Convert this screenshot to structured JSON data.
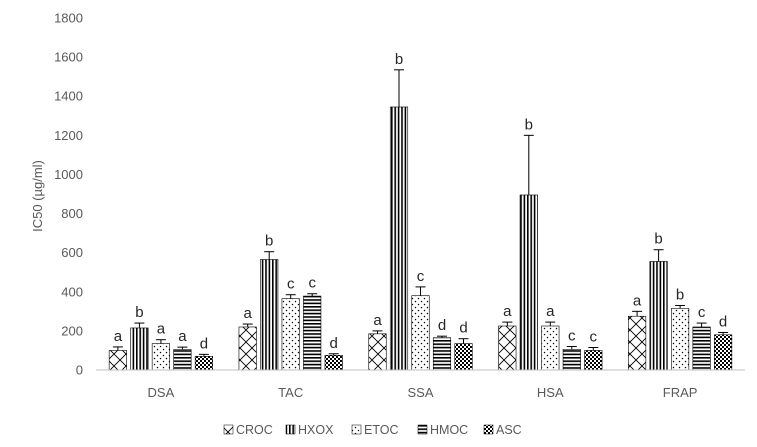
{
  "chart_data": {
    "type": "bar",
    "ylabel": "IC50 (µg/ml)",
    "ylim": [
      0,
      1800
    ],
    "yticks": [
      0,
      200,
      400,
      600,
      800,
      1000,
      1200,
      1400,
      1600,
      1800
    ],
    "categories": [
      "DSA",
      "TAC",
      "SSA",
      "HSA",
      "FRAP"
    ],
    "grid": false,
    "legend": "bottom",
    "series": [
      {
        "name": "CROC",
        "pattern": "crosshatch-diagonal",
        "values": [
          100,
          220,
          185,
          225,
          275
        ],
        "errors": [
          18,
          15,
          15,
          20,
          25
        ],
        "letters": [
          "a",
          "a",
          "a",
          "a",
          "a"
        ]
      },
      {
        "name": "HXOX",
        "pattern": "vertical-lines",
        "values": [
          215,
          565,
          1345,
          895,
          555
        ],
        "errors": [
          25,
          40,
          190,
          305,
          60
        ],
        "letters": [
          "b",
          "b",
          "b",
          "b",
          "b"
        ]
      },
      {
        "name": "ETOC",
        "pattern": "dots",
        "values": [
          135,
          365,
          380,
          225,
          315
        ],
        "errors": [
          20,
          20,
          45,
          20,
          15
        ],
        "letters": [
          "a",
          "c",
          "c",
          "a",
          "b"
        ]
      },
      {
        "name": "HMOC",
        "pattern": "horizontal-lines",
        "values": [
          105,
          378,
          165,
          105,
          220
        ],
        "errors": [
          12,
          12,
          8,
          15,
          20
        ],
        "letters": [
          "a",
          "c",
          "d",
          "c",
          "c"
        ]
      },
      {
        "name": "ASC",
        "pattern": "checker",
        "values": [
          70,
          75,
          135,
          100,
          180
        ],
        "errors": [
          10,
          8,
          25,
          15,
          12
        ],
        "letters": [
          "d",
          "d",
          "d",
          "c",
          "d"
        ]
      }
    ]
  }
}
